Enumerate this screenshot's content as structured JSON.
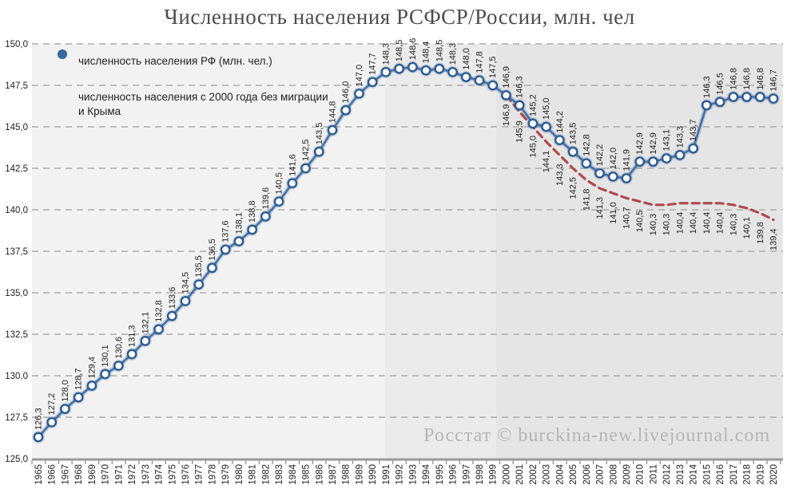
{
  "title": "Численность населения РСФСР/России, млн. чел",
  "watermark": "Росстат © burckina-new.livejournal.com",
  "legend": {
    "items": [
      {
        "label": "численность населения РФ (млн. чел.)",
        "lines": [
          "численность населения РФ (млн. чел.)"
        ],
        "marker": "line-with-dot",
        "color": "#4272a8"
      },
      {
        "label": "численность населения с 2000 года без миграции и Крыма",
        "lines": [
          "численность населения с 2000 года без миграции",
          "и Крыма"
        ],
        "marker": "dashed-line",
        "color": "#b04a4e"
      }
    ]
  },
  "chart_data": {
    "type": "line",
    "title": "Численность населения РСФСР/России, млн. чел",
    "xlabel": "",
    "ylabel": "",
    "ylim": [
      125.0,
      150.0
    ],
    "ytick_step": 2.5,
    "y_tick_labels": [
      "125,0",
      "127,5",
      "130,0",
      "132,5",
      "135,0",
      "137,5",
      "140,0",
      "142,5",
      "145,0",
      "147,5",
      "150,0"
    ],
    "grid": "horizontal-dashed",
    "grid_color": "#ababab",
    "legend_position": "top-left-inside",
    "decimal_separator": ",",
    "x": [
      1965,
      1966,
      1967,
      1968,
      1969,
      1970,
      1971,
      1972,
      1973,
      1974,
      1975,
      1976,
      1977,
      1978,
      1979,
      1980,
      1981,
      1982,
      1983,
      1984,
      1985,
      1986,
      1987,
      1988,
      1989,
      1990,
      1991,
      1992,
      1993,
      1994,
      1995,
      1996,
      1997,
      1998,
      1999,
      2000,
      2001,
      2002,
      2003,
      2004,
      2005,
      2006,
      2007,
      2008,
      2009,
      2010,
      2011,
      2012,
      2013,
      2014,
      2015,
      2016,
      2017,
      2018,
      2019,
      2020
    ],
    "series": [
      {
        "name": "численность населения РФ (млн. чел.)",
        "style": "solid-line-circle-markers",
        "color": "#4272a8",
        "marker_ring_color": "#2d5c92",
        "marker_fill": "#fdfeff",
        "label_position": "above-rotated",
        "start_year": 1965,
        "values": [
          126.3,
          127.2,
          128.0,
          128.7,
          129.4,
          130.1,
          130.6,
          131.3,
          132.1,
          132.8,
          133.6,
          134.5,
          135.5,
          136.5,
          137.6,
          138.1,
          138.8,
          139.6,
          140.5,
          141.6,
          142.5,
          143.5,
          144.8,
          146.0,
          147.0,
          147.7,
          148.3,
          148.5,
          148.6,
          148.4,
          148.5,
          148.3,
          148.0,
          147.8,
          147.5,
          146.9,
          146.3,
          145.2,
          145.0,
          144.2,
          143.5,
          142.8,
          142.2,
          142.0,
          141.9,
          142.9,
          142.9,
          143.1,
          143.3,
          143.7,
          146.3,
          146.5,
          146.8,
          146.8,
          146.8,
          146.7
        ]
      },
      {
        "name": "численность населения с 2000 года без миграции и Крыма",
        "style": "dashed-line",
        "color": "#b04a4e",
        "label_position": "below-rotated",
        "start_year": 2000,
        "values": [
          146.9,
          145.9,
          145.0,
          144.1,
          143.3,
          142.5,
          141.8,
          141.3,
          141.0,
          140.7,
          140.5,
          140.3,
          140.3,
          140.4,
          140.4,
          140.4,
          140.4,
          140.3,
          140.1,
          139.8,
          139.4
        ]
      }
    ],
    "plot_bands": [
      {
        "from_year": 1964.5,
        "to_year": 1990.95,
        "color": "#f2f2f2"
      },
      {
        "from_year": 1990.95,
        "to_year": 1999.25,
        "color": "#ebebec"
      },
      {
        "from_year": 1999.25,
        "to_year": 2020.7,
        "color": "#e5e5e6"
      }
    ],
    "axis_color": "#9a9a9a",
    "label_text_color": "#222222"
  }
}
